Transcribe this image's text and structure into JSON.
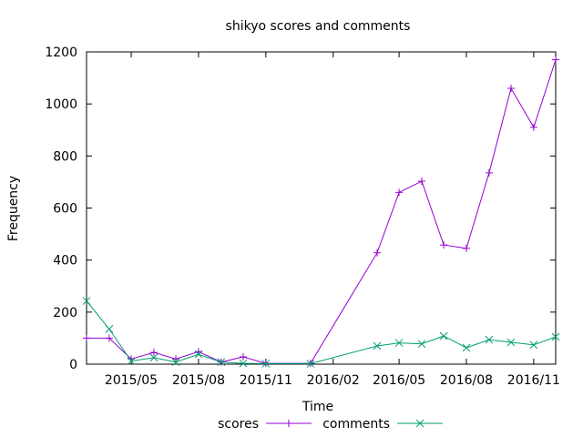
{
  "chart_data": {
    "type": "line",
    "title": "shikyo scores and comments",
    "xlabel": "Time",
    "ylabel": "Frequency",
    "ylim": [
      0,
      1200
    ],
    "y_ticks": [
      0,
      200,
      400,
      600,
      800,
      1000,
      1200
    ],
    "xlim": [
      "2015-03-01",
      "2016-12-01"
    ],
    "x_ticks": [
      {
        "date": "2015-05-01",
        "label": "2015/05"
      },
      {
        "date": "2015-08-01",
        "label": "2015/08"
      },
      {
        "date": "2015-11-01",
        "label": "2015/11"
      },
      {
        "date": "2016-02-01",
        "label": "2016/02"
      },
      {
        "date": "2016-05-01",
        "label": "2016/05"
      },
      {
        "date": "2016-08-01",
        "label": "2016/08"
      },
      {
        "date": "2016-11-01",
        "label": "2016/11"
      }
    ],
    "grid": false,
    "legend_position": "bottom",
    "series": [
      {
        "name": "scores",
        "color": "#9400d3",
        "marker": "plus",
        "points": [
          {
            "x": "2015-03-01",
            "y": 100
          },
          {
            "x": "2015-04-01",
            "y": 100
          },
          {
            "x": "2015-05-01",
            "y": 20
          },
          {
            "x": "2015-06-01",
            "y": 45
          },
          {
            "x": "2015-07-01",
            "y": 20
          },
          {
            "x": "2015-08-01",
            "y": 48
          },
          {
            "x": "2015-09-01",
            "y": 8
          },
          {
            "x": "2015-10-01",
            "y": 28
          },
          {
            "x": "2015-11-01",
            "y": 3
          },
          {
            "x": "2016-01-01",
            "y": 3
          },
          {
            "x": "2016-04-01",
            "y": 428
          },
          {
            "x": "2016-05-01",
            "y": 660
          },
          {
            "x": "2016-06-01",
            "y": 703
          },
          {
            "x": "2016-07-01",
            "y": 458
          },
          {
            "x": "2016-08-01",
            "y": 445
          },
          {
            "x": "2016-09-01",
            "y": 735
          },
          {
            "x": "2016-10-01",
            "y": 1060
          },
          {
            "x": "2016-11-01",
            "y": 910
          },
          {
            "x": "2016-12-01",
            "y": 1170
          }
        ]
      },
      {
        "name": "comments",
        "color": "#009e73",
        "marker": "cross",
        "points": [
          {
            "x": "2015-03-01",
            "y": 243
          },
          {
            "x": "2015-04-01",
            "y": 135
          },
          {
            "x": "2015-05-01",
            "y": 12
          },
          {
            "x": "2015-06-01",
            "y": 25
          },
          {
            "x": "2015-07-01",
            "y": 8
          },
          {
            "x": "2015-08-01",
            "y": 38
          },
          {
            "x": "2015-09-01",
            "y": 8
          },
          {
            "x": "2015-10-01",
            "y": 3
          },
          {
            "x": "2015-11-01",
            "y": 2
          },
          {
            "x": "2016-01-01",
            "y": 2
          },
          {
            "x": "2016-04-01",
            "y": 70
          },
          {
            "x": "2016-05-01",
            "y": 82
          },
          {
            "x": "2016-06-01",
            "y": 78
          },
          {
            "x": "2016-07-01",
            "y": 108
          },
          {
            "x": "2016-08-01",
            "y": 63
          },
          {
            "x": "2016-09-01",
            "y": 94
          },
          {
            "x": "2016-10-01",
            "y": 84
          },
          {
            "x": "2016-11-01",
            "y": 74
          },
          {
            "x": "2016-12-01",
            "y": 105
          }
        ]
      }
    ]
  }
}
